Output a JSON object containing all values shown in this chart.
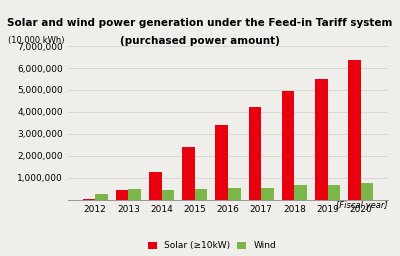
{
  "years": [
    2012,
    2013,
    2014,
    2015,
    2016,
    2017,
    2018,
    2019,
    2020
  ],
  "solar": [
    50000,
    420000,
    1280000,
    2400000,
    3420000,
    4230000,
    4960000,
    5500000,
    6350000
  ],
  "wind": [
    280000,
    490000,
    460000,
    480000,
    510000,
    530000,
    660000,
    680000,
    770000
  ],
  "solar_color": "#e8000e",
  "wind_color": "#7ab648",
  "title_line1": "Solar and wind power generation under the Feed-in Tariff system",
  "title_line2": "(purchased power amount)",
  "ylabel": "(10,000 kWh)",
  "xlabel_note": "[Fiscal year]",
  "legend_solar": "Solar (≥10kW)",
  "legend_wind": "Wind",
  "ylim": [
    0,
    7000000
  ],
  "yticks": [
    1000000,
    2000000,
    3000000,
    4000000,
    5000000,
    6000000,
    7000000
  ],
  "bar_width": 0.38,
  "background_color": "#f0eeea"
}
